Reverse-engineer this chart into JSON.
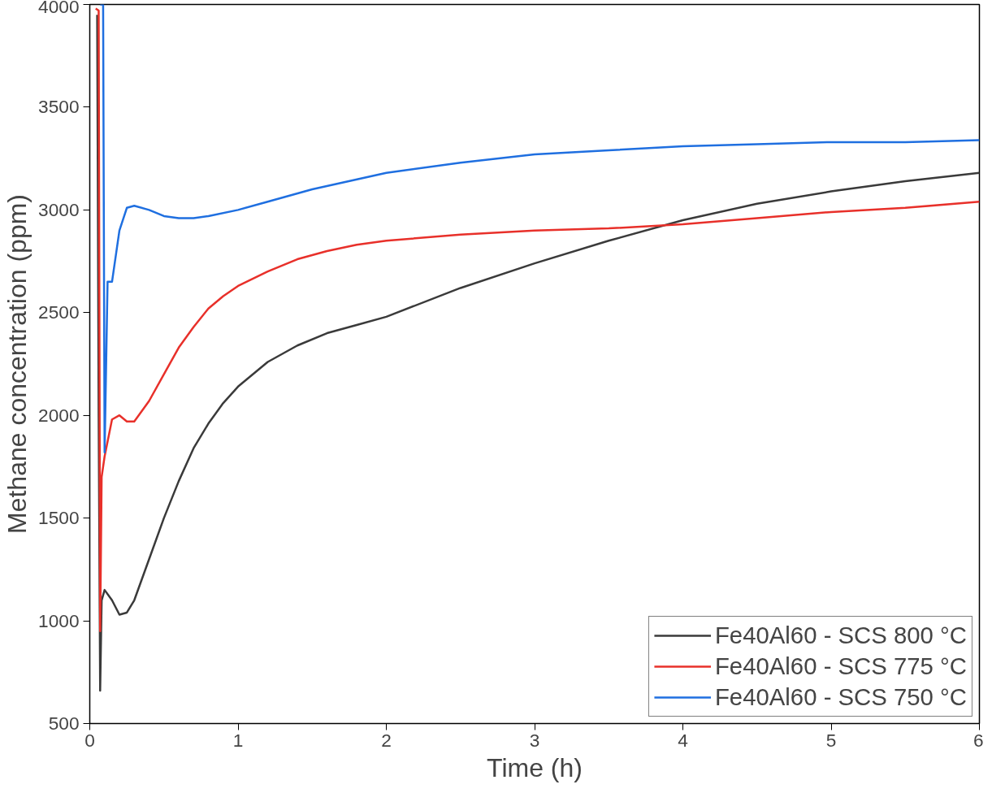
{
  "chart_data": {
    "type": "line",
    "xlabel": "Time (h)",
    "ylabel": "Methane concentration (ppm)",
    "xlim": [
      0,
      6
    ],
    "xticks": [
      0,
      1,
      2,
      3,
      4,
      5,
      6
    ],
    "ylim": [
      500,
      4000
    ],
    "yticks": [
      500,
      1000,
      1500,
      2000,
      2500,
      3000,
      3500,
      4000
    ],
    "grid": false,
    "legend": "bottom right",
    "line_style": "solid",
    "marker": "none",
    "series": [
      {
        "name": "Fe40Al60 - SCS 800 °C",
        "color": "#3a3a3a",
        "x": [
          0.05,
          0.06,
          0.07,
          0.08,
          0.1,
          0.15,
          0.2,
          0.25,
          0.3,
          0.4,
          0.5,
          0.6,
          0.7,
          0.8,
          0.9,
          1.0,
          1.2,
          1.4,
          1.6,
          1.8,
          2.0,
          2.5,
          3.0,
          3.5,
          4.0,
          4.5,
          5.0,
          5.5,
          6.0
        ],
        "values": [
          3950,
          2000,
          660,
          1100,
          1150,
          1100,
          1030,
          1040,
          1100,
          1300,
          1500,
          1680,
          1840,
          1960,
          2060,
          2140,
          2260,
          2340,
          2400,
          2440,
          2480,
          2620,
          2740,
          2850,
          2950,
          3030,
          3090,
          3140,
          3180
        ]
      },
      {
        "name": "Fe40Al60 - SCS 775 °C",
        "color": "#e8302a",
        "x": [
          0.04,
          0.06,
          0.07,
          0.08,
          0.1,
          0.15,
          0.2,
          0.25,
          0.3,
          0.4,
          0.5,
          0.6,
          0.7,
          0.8,
          0.9,
          1.0,
          1.2,
          1.4,
          1.6,
          1.8,
          2.0,
          2.5,
          3.0,
          3.5,
          4.0,
          4.5,
          5.0,
          5.5,
          6.0
        ],
        "values": [
          3980,
          3970,
          950,
          1700,
          1800,
          1980,
          2000,
          1970,
          1970,
          2070,
          2200,
          2330,
          2430,
          2520,
          2580,
          2630,
          2700,
          2760,
          2800,
          2830,
          2850,
          2880,
          2900,
          2910,
          2930,
          2960,
          2990,
          3010,
          3040
        ]
      },
      {
        "name": "Fe40Al60 - SCS 750 °C",
        "color": "#1f6fe0",
        "x": [
          0.07,
          0.09,
          0.1,
          0.12,
          0.15,
          0.2,
          0.25,
          0.3,
          0.4,
          0.5,
          0.6,
          0.7,
          0.8,
          1.0,
          1.2,
          1.5,
          2.0,
          2.5,
          3.0,
          3.5,
          4.0,
          4.5,
          5.0,
          5.5,
          6.0
        ],
        "values": [
          4000,
          4000,
          1820,
          2650,
          2650,
          2900,
          3010,
          3020,
          3000,
          2970,
          2960,
          2960,
          2970,
          3000,
          3040,
          3100,
          3180,
          3230,
          3270,
          3290,
          3310,
          3320,
          3330,
          3330,
          3340
        ]
      }
    ]
  }
}
